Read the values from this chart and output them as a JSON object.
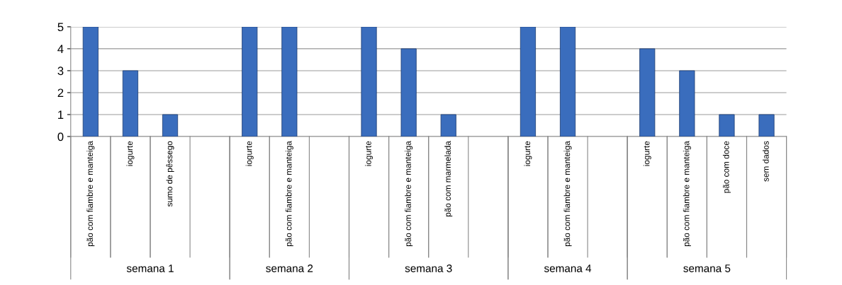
{
  "chart_data": {
    "type": "bar",
    "categories": [
      "pão com fiambre e manteiga",
      "iogurte",
      "sumo de pêssego",
      null,
      "iogurte",
      "pão com fiambre e manteiga",
      null,
      "iogurte",
      "pão com fiambre e manteiga",
      "pão com marmelada",
      null,
      "iogurte",
      "pão com fiambre e manteiga",
      null,
      "iogurte",
      "pão com fiambre e manteiga",
      "pão com doce",
      "sem dados"
    ],
    "values": [
      5,
      3,
      1,
      null,
      5,
      5,
      null,
      5,
      4,
      1,
      null,
      5,
      5,
      null,
      4,
      3,
      1,
      1
    ],
    "color": "#3a6dbd",
    "ylim": [
      0,
      5
    ],
    "yticks": [
      0,
      1,
      2,
      3,
      4,
      5
    ],
    "grid": "y",
    "annotations": [
      "semana 1",
      "semana 2",
      "semana 3",
      "semana 4",
      "semana 5"
    ]
  }
}
